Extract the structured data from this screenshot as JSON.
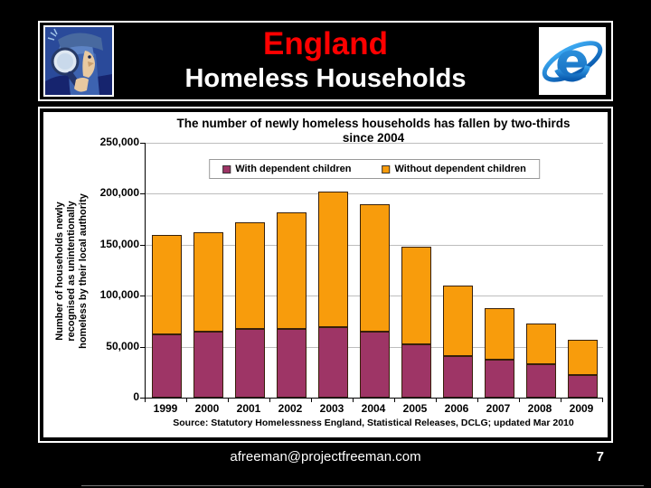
{
  "slide": {
    "title": "England",
    "subtitle": "Homeless Households",
    "footer_email": "afreeman@projectfreeman.com",
    "page_number": "7"
  },
  "theme": {
    "background": "#000000",
    "panel_border": "#ffffff",
    "title_color": "#ff0000",
    "subtitle_color": "#ffffff",
    "gridline_color": "#bdbdbd",
    "bar_border_color": "#37200a"
  },
  "icons": {
    "left_logo": "detective-with-magnifying-glass",
    "right_logo": "internet-explorer-e-logo"
  },
  "chart_data": {
    "type": "bar",
    "stacked": true,
    "title_lines": [
      "The number of newly homeless households has fallen by two-thirds",
      "since 2004"
    ],
    "categories": [
      "1999",
      "2000",
      "2001",
      "2002",
      "2003",
      "2004",
      "2005",
      "2006",
      "2007",
      "2008",
      "2009"
    ],
    "series": [
      {
        "name": "With dependent children",
        "color": "#9E3566",
        "values": [
          62000,
          65000,
          67000,
          67000,
          69000,
          65000,
          52000,
          41000,
          37000,
          33000,
          22000
        ]
      },
      {
        "name": "Without dependent children",
        "color": "#F89C0C",
        "values": [
          98000,
          97000,
          105000,
          115000,
          133000,
          125000,
          96000,
          69000,
          51000,
          40000,
          35000
        ]
      }
    ],
    "ylabel_lines": [
      "Number of households newly",
      "recognised as unintentionally",
      "homeless by their local authority"
    ],
    "y_ticks": [
      "0",
      "50,000",
      "100,000",
      "150,000",
      "200,000",
      "250,000"
    ],
    "ylim": [
      0,
      250000
    ],
    "grid": true,
    "legend_position": "top-center",
    "source": "Source: Statutory Homelessness England, Statistical Releases, DCLG; updated Mar 2010"
  }
}
